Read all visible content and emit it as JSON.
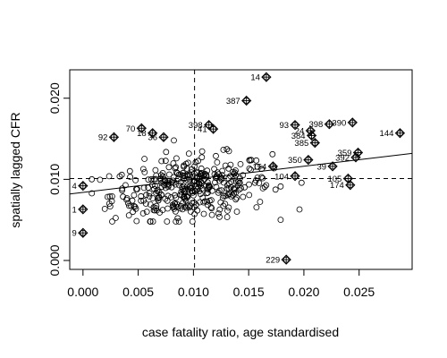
{
  "chart_data": {
    "type": "scatter",
    "title": "",
    "xlabel": "case fatality ratio, age standardised",
    "ylabel": "spatially lagged CFR",
    "xlim": [
      -0.0012,
      0.0298
    ],
    "ylim": [
      -0.0011,
      0.0235
    ],
    "x_ticks": [
      0.0,
      0.005,
      0.01,
      0.015,
      0.02,
      0.025
    ],
    "x_tick_labels": [
      "0.000",
      "0.005",
      "0.010",
      "0.015",
      "0.020",
      "0.025"
    ],
    "y_ticks": [
      0.0,
      0.01,
      0.02
    ],
    "y_tick_labels": [
      "0.000",
      "0.010",
      "0.020"
    ],
    "mean_x": 0.0101,
    "mean_y": 0.0101,
    "regression_line": {
      "x": [
        -0.0012,
        0.0298
      ],
      "y": [
        0.0082,
        0.0132
      ]
    },
    "influential_points": [
      {
        "label": "14",
        "x": 0.0166,
        "y": 0.0226
      },
      {
        "label": "387",
        "x": 0.0148,
        "y": 0.0197
      },
      {
        "label": "398",
        "x": 0.0114,
        "y": 0.0167
      },
      {
        "label": "41",
        "x": 0.0118,
        "y": 0.0162
      },
      {
        "label": "70",
        "x": 0.0053,
        "y": 0.0163
      },
      {
        "label": "18",
        "x": 0.0063,
        "y": 0.0157
      },
      {
        "label": "36",
        "x": 0.0073,
        "y": 0.0152
      },
      {
        "label": "92",
        "x": 0.0028,
        "y": 0.0152
      },
      {
        "label": "93",
        "x": 0.0192,
        "y": 0.0167
      },
      {
        "label": "398",
        "x": 0.0223,
        "y": 0.0168
      },
      {
        "label": "390",
        "x": 0.0244,
        "y": 0.017
      },
      {
        "label": "24",
        "x": 0.0206,
        "y": 0.016
      },
      {
        "label": "384",
        "x": 0.0207,
        "y": 0.0154
      },
      {
        "label": "385",
        "x": 0.021,
        "y": 0.0145
      },
      {
        "label": "144",
        "x": 0.0287,
        "y": 0.0157
      },
      {
        "label": "359",
        "x": 0.0249,
        "y": 0.0133
      },
      {
        "label": "392",
        "x": 0.0247,
        "y": 0.0127
      },
      {
        "label": "350",
        "x": 0.0204,
        "y": 0.0124
      },
      {
        "label": "154",
        "x": 0.0172,
        "y": 0.0116
      },
      {
        "label": "39",
        "x": 0.0226,
        "y": 0.0116
      },
      {
        "label": "104",
        "x": 0.0192,
        "y": 0.0104
      },
      {
        "label": "105",
        "x": 0.024,
        "y": 0.0101
      },
      {
        "label": "174",
        "x": 0.0242,
        "y": 0.0093
      },
      {
        "label": "229",
        "x": 0.0184,
        "y": 0.0001
      },
      {
        "label": "4",
        "x": 0.0,
        "y": 0.0092
      },
      {
        "label": "1",
        "x": 0.0,
        "y": 0.0063
      },
      {
        "label": "9",
        "x": 0.0,
        "y": 0.0034
      }
    ]
  }
}
